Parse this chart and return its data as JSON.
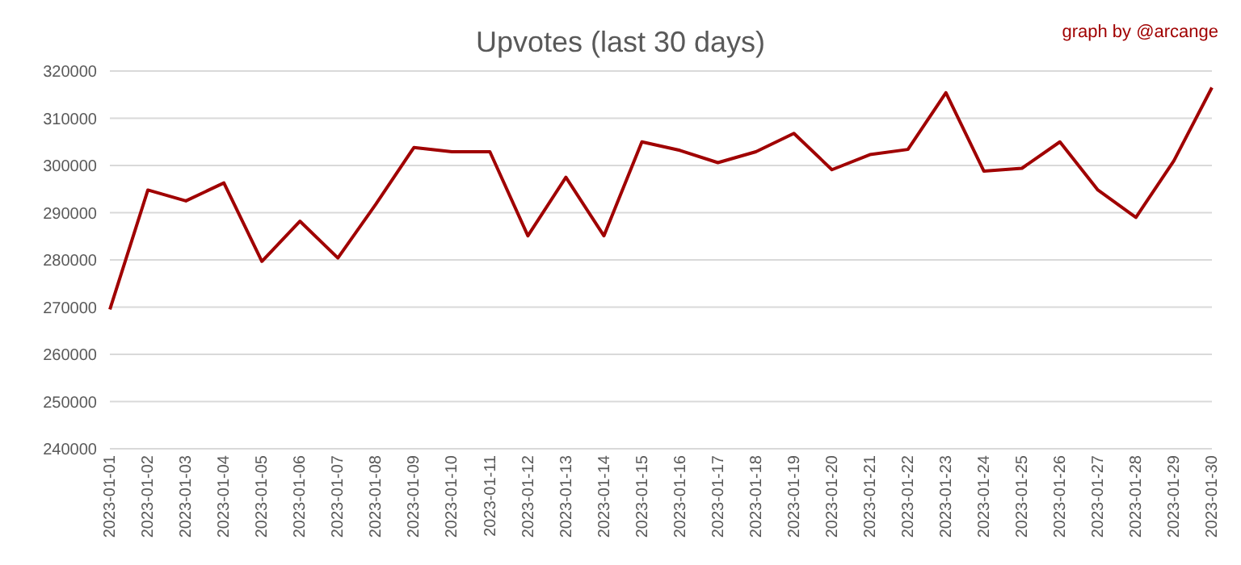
{
  "chart_data": {
    "type": "line",
    "title": "Upvotes (last 30 days)",
    "annotations": [
      "graph by @arcange"
    ],
    "categories": [
      "2023-01-01",
      "2023-01-02",
      "2023-01-03",
      "2023-01-04",
      "2023-01-05",
      "2023-01-06",
      "2023-01-07",
      "2023-01-08",
      "2023-01-09",
      "2023-01-10",
      "2023-01-11",
      "2023-01-12",
      "2023-01-13",
      "2023-01-14",
      "2023-01-15",
      "2023-01-16",
      "2023-01-17",
      "2023-01-18",
      "2023-01-19",
      "2023-01-20",
      "2023-01-21",
      "2023-01-22",
      "2023-01-23",
      "2023-01-24",
      "2023-01-25",
      "2023-01-26",
      "2023-01-27",
      "2023-01-28",
      "2023-01-29",
      "2023-01-30"
    ],
    "series": [
      {
        "color": "#a00000",
        "values": [
          269500,
          294800,
          292500,
          296300,
          279700,
          288200,
          280400,
          291800,
          303800,
          302900,
          302900,
          285100,
          297500,
          285100,
          305000,
          303200,
          300600,
          302900,
          306800,
          299100,
          302300,
          303400,
          315400,
          298800,
          299400,
          305000,
          294800,
          289000,
          301000,
          316500
        ]
      }
    ],
    "ylim": [
      240000,
      320000
    ],
    "yticks": [
      240000,
      250000,
      260000,
      270000,
      280000,
      290000,
      300000,
      310000,
      320000
    ],
    "grid": "y",
    "legend": false,
    "marker": "none",
    "line_style": "solid"
  }
}
